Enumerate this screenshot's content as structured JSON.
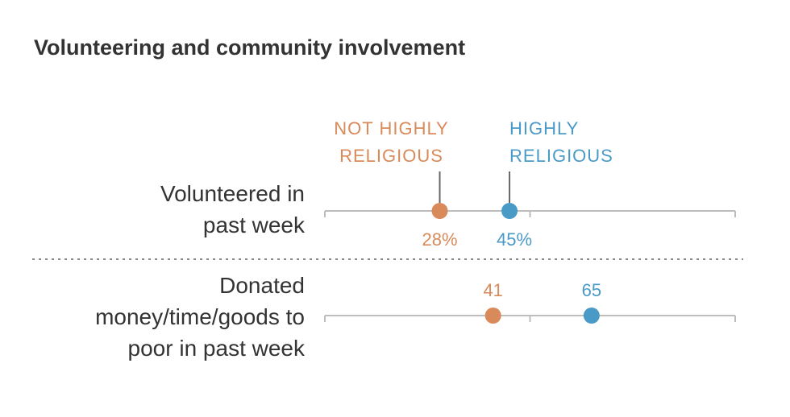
{
  "chart_data": {
    "type": "dot",
    "title": "Volunteering and community involvement",
    "xlim": [
      0,
      100
    ],
    "categories": [
      {
        "lines": [
          "Volunteered in",
          "past week"
        ]
      },
      {
        "lines": [
          "Donated",
          "money/time/goods to",
          "poor in past week"
        ]
      }
    ],
    "series": [
      {
        "name": "NOT HIGHLY RELIGIOUS",
        "name_lines": [
          "NOT HIGHLY",
          "RELIGIOUS"
        ],
        "color": "#d98a5a",
        "values": [
          28,
          41
        ],
        "value_labels": [
          "28%",
          "41"
        ]
      },
      {
        "name": "HIGHLY RELIGIOUS",
        "name_lines": [
          "HIGHLY",
          "RELIGIOUS"
        ],
        "color": "#4a9ac8",
        "values": [
          45,
          65
        ],
        "value_labels": [
          "45%",
          "65"
        ]
      }
    ]
  }
}
